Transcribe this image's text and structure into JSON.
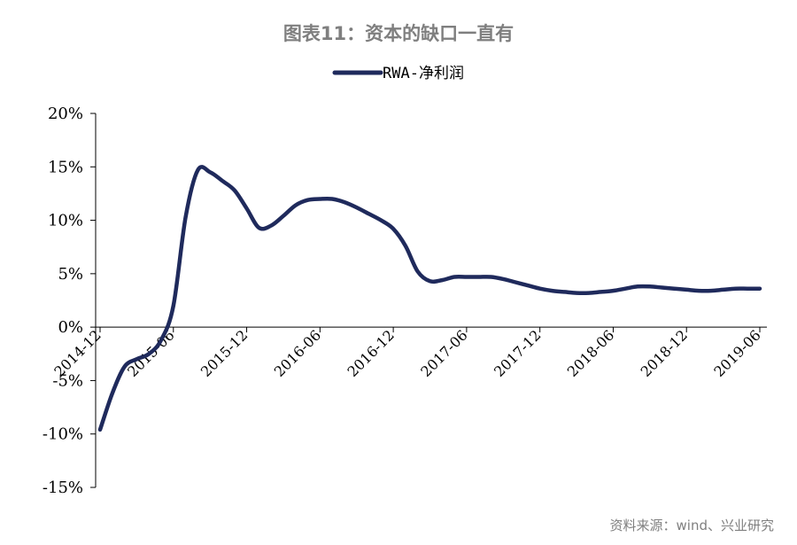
{
  "header": {
    "title": "图表11：资本的缺口一直有"
  },
  "footer": {
    "source": "资料来源：wind、兴业研究"
  },
  "colors": {
    "line": "#1f2a5c",
    "axis": "#000000",
    "title": "#7f7f7f"
  },
  "chart_data": {
    "type": "line",
    "title": "图表11：资本的缺口一直有",
    "xlabel": "",
    "ylabel": "",
    "ylim": [
      -0.15,
      0.2
    ],
    "y_ticks": [
      -0.15,
      -0.1,
      -0.05,
      0,
      0.05,
      0.1,
      0.15,
      0.2
    ],
    "y_tick_labels": [
      "-15%",
      "-10%",
      "-5%",
      "0%",
      "5%",
      "10%",
      "15%",
      "20%"
    ],
    "x_tick_labels": [
      "2014-12",
      "2015-06",
      "2015-12",
      "2016-06",
      "2016-12",
      "2017-06",
      "2017-12",
      "2018-06",
      "2018-12",
      "2019-06"
    ],
    "grid": false,
    "legend_position": "top-center",
    "series": [
      {
        "name": "RWA-净利润",
        "x": [
          0,
          1,
          2,
          3,
          4,
          5,
          6,
          7,
          8,
          9,
          10,
          11,
          12,
          13,
          14,
          15,
          16,
          17,
          18,
          19,
          20,
          21,
          22,
          23,
          24,
          25,
          26,
          27,
          28,
          29,
          30,
          31,
          32,
          33,
          34,
          35,
          36,
          37,
          38,
          39,
          40,
          41,
          42,
          43,
          44,
          45,
          46,
          47,
          48,
          49,
          50,
          51,
          52,
          53,
          54
        ],
        "x_labels": [
          "2014-12",
          "2015-01",
          "2015-02",
          "2015-03",
          "2015-04",
          "2015-05",
          "2015-06",
          "2015-07",
          "2015-08",
          "2015-09",
          "2015-10",
          "2015-11",
          "2015-12",
          "2016-01",
          "2016-02",
          "2016-03",
          "2016-04",
          "2016-05",
          "2016-06",
          "2016-07",
          "2016-08",
          "2016-09",
          "2016-10",
          "2016-11",
          "2016-12",
          "2017-01",
          "2017-02",
          "2017-03",
          "2017-04",
          "2017-05",
          "2017-06",
          "2017-07",
          "2017-08",
          "2017-09",
          "2017-10",
          "2017-11",
          "2017-12",
          "2018-01",
          "2018-02",
          "2018-03",
          "2018-04",
          "2018-05",
          "2018-06",
          "2018-07",
          "2018-08",
          "2018-09",
          "2018-10",
          "2018-11",
          "2018-12",
          "2019-01",
          "2019-02",
          "2019-03",
          "2019-04",
          "2019-05",
          "2019-06"
        ],
        "values": [
          -0.096,
          -0.062,
          -0.037,
          -0.03,
          -0.025,
          -0.012,
          0.02,
          0.103,
          0.147,
          0.145,
          0.137,
          0.128,
          0.111,
          0.093,
          0.095,
          0.104,
          0.114,
          0.119,
          0.12,
          0.12,
          0.117,
          0.112,
          0.106,
          0.1,
          0.092,
          0.076,
          0.052,
          0.043,
          0.044,
          0.047,
          0.047,
          0.047,
          0.047,
          0.045,
          0.042,
          0.039,
          0.036,
          0.034,
          0.033,
          0.032,
          0.032,
          0.033,
          0.034,
          0.036,
          0.038,
          0.038,
          0.037,
          0.036,
          0.035,
          0.034,
          0.034,
          0.035,
          0.036,
          0.036,
          0.036
        ]
      }
    ]
  }
}
